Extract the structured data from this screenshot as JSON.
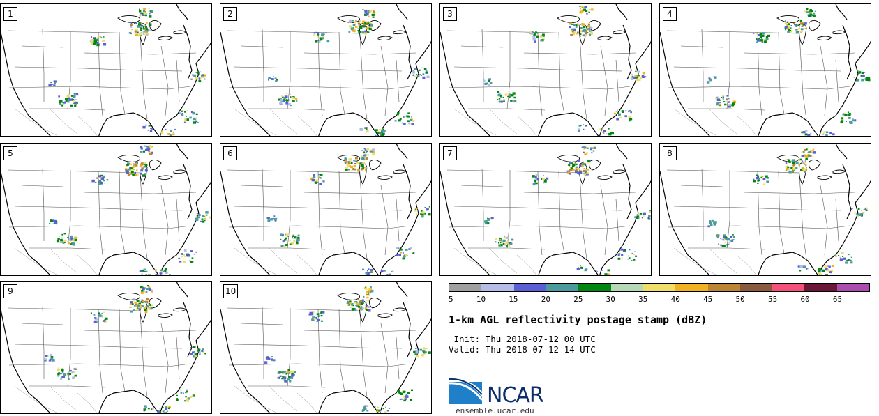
{
  "panels": [
    "1",
    "2",
    "3",
    "4",
    "5",
    "6",
    "7",
    "8",
    "9",
    "10"
  ],
  "colorbar": {
    "colors": [
      "#a0a0a0",
      "#b4bde8",
      "#5a5fd6",
      "#4a9a9e",
      "#00870f",
      "#b5d9b8",
      "#f0de6a",
      "#f0b21e",
      "#bc8536",
      "#8a5a3e",
      "#f5507c",
      "#6a1838",
      "#ac4cae"
    ],
    "labels": [
      "5",
      "10",
      "15",
      "20",
      "25",
      "30",
      "35",
      "40",
      "45",
      "50",
      "55",
      "60",
      "65"
    ]
  },
  "title": "1-km AGL reflectivity postage stamp (dBZ)",
  "init": " Init: Thu 2018-07-12 00 UTC",
  "valid": "Valid: Thu 2018-07-12 14 UTC",
  "logo": {
    "text": "NCAR",
    "site": "ensemble.ucar.edu"
  }
}
